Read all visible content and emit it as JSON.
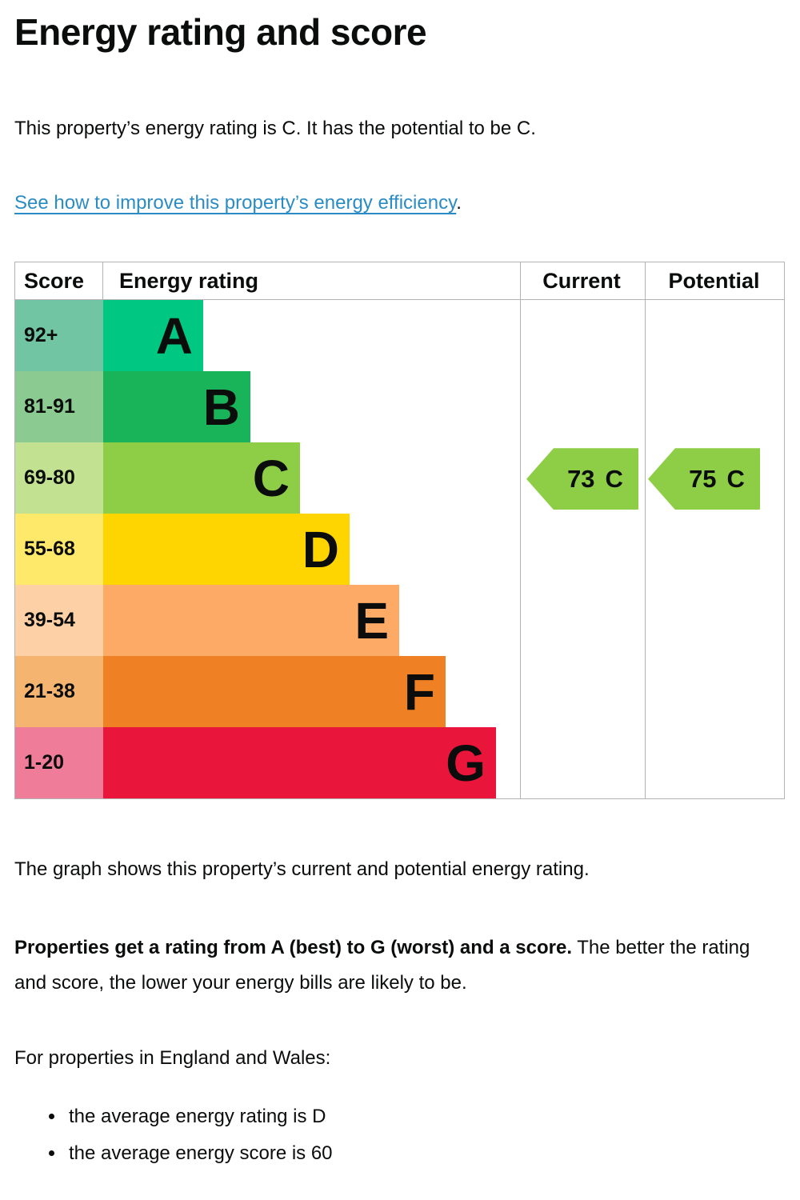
{
  "page": {
    "title": "Energy rating and score",
    "intro": "This property’s energy rating is C. It has the potential to be C.",
    "improve_link": {
      "text": "See how to improve this property’s energy efficiency",
      "suffix": "."
    },
    "graph_caption": "The graph shows this property’s current and potential energy rating.",
    "rating_explainer": {
      "bold": "Properties get a rating from A (best) to G (worst) and a score.",
      "rest": " The better the rating and score, the lower your energy bills are likely to be."
    },
    "region_heading": "For properties in England and Wales:",
    "bullets": [
      "the average energy rating is D",
      "the average energy score is 60"
    ]
  },
  "chart_data": {
    "type": "bar",
    "title": "Energy rating and score",
    "orientation": "horizontal",
    "grid": "off",
    "legend": "none",
    "columns": [
      "Score",
      "Energy rating",
      "Current",
      "Potential"
    ],
    "bands": [
      {
        "score_range": "92+",
        "letter": "A",
        "bar_color": "#00c781",
        "score_cell_color": "#72c5a3"
      },
      {
        "score_range": "81-91",
        "letter": "B",
        "bar_color": "#19b459",
        "score_cell_color": "#8bcb92"
      },
      {
        "score_range": "69-80",
        "letter": "C",
        "bar_color": "#8dce46",
        "score_cell_color": "#c2e191"
      },
      {
        "score_range": "55-68",
        "letter": "D",
        "bar_color": "#ffd500",
        "score_cell_color": "#ffe96a"
      },
      {
        "score_range": "39-54",
        "letter": "E",
        "bar_color": "#fcaa65",
        "score_cell_color": "#fdd1a5"
      },
      {
        "score_range": "21-38",
        "letter": "F",
        "bar_color": "#ef8023",
        "score_cell_color": "#f5b571"
      },
      {
        "score_range": "1-20",
        "letter": "G",
        "bar_color": "#e9153b",
        "score_cell_color": "#ef7d99"
      }
    ],
    "current": {
      "score": "73",
      "band": "C",
      "arrow_color": "#8dce46"
    },
    "potential": {
      "score": "75",
      "band": "C",
      "arrow_color": "#8dce46"
    }
  },
  "theme": {
    "text_color": "#0b0c0c",
    "link_color": "#2b8cc4",
    "border_color": "#b1b4b6",
    "background": "#ffffff"
  }
}
